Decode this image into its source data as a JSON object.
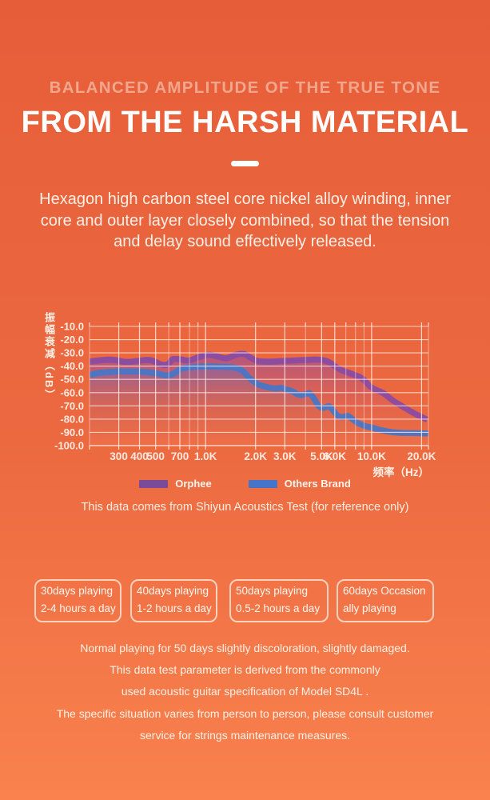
{
  "header": {
    "subtitle": "BALANCED AMPLITUDE OF THE TRUE TONE",
    "title": "FROM THE HARSH MATERIAL",
    "description": "Hexagon high carbon steel core nickel alloy winding, inner core and outer layer closely combined, so that the tension and delay sound effectively released."
  },
  "colors": {
    "background_top": "#E65E39",
    "background_bottom": "#F9824E",
    "title": "#FFFFFF",
    "subtitle": "#F2A68D",
    "grid": "rgba(255,240,234,0.72)",
    "axis_text": "#FFE9DE",
    "orphee_purple": "#7B4A99",
    "others_blue": "#4674C8"
  },
  "chart_data": {
    "type": "area",
    "source_note": "This data comes from Shiyun Acoustics Test (for reference only)",
    "x_axis": {
      "title": "频率（Hz）",
      "scale": "log",
      "min": 200,
      "max": 22000,
      "gridlines": [
        200,
        300,
        400,
        500,
        600,
        700,
        800,
        900,
        1000,
        2000,
        3000,
        4000,
        5000,
        6000,
        7000,
        8000,
        9000,
        10000,
        20000,
        22000
      ],
      "tick_labels": [
        {
          "f": 300,
          "label": "300"
        },
        {
          "f": 400,
          "label": "400"
        },
        {
          "f": 500,
          "label": "500"
        },
        {
          "f": 700,
          "label": "700"
        },
        {
          "f": 1000,
          "label": "1.0K"
        },
        {
          "f": 2000,
          "label": "2.0K"
        },
        {
          "f": 3000,
          "label": "3.0K"
        },
        {
          "f": 5000,
          "label": "5.0K"
        },
        {
          "f": 6000,
          "label": "6.0K"
        },
        {
          "f": 10000,
          "label": "10.0K"
        },
        {
          "f": 20000,
          "label": "20.0K"
        }
      ]
    },
    "y_axis": {
      "title": "振幅衰减（dB）",
      "min": -100,
      "max": -10,
      "step": 10,
      "tick_labels": [
        "-10.0",
        "-20.0",
        "-30.0",
        "-40.0",
        "-50.0",
        "-60.0",
        "-70.0",
        "-80.0",
        "-90.0",
        "-100.0"
      ]
    },
    "legend": [
      {
        "name": "Orphee",
        "color": "#7B4A99"
      },
      {
        "name": "Others Brand",
        "color": "#4674C8"
      }
    ],
    "series": [
      {
        "name": "Orphee",
        "line_color": "#8A4BA3",
        "gradient": [
          [
            0,
            "#9150A9",
            0.95
          ],
          [
            0.35,
            "#A6518F",
            0.6
          ],
          [
            0.7,
            "#D85F5D",
            0.34
          ],
          [
            1,
            "#F07A52",
            0.2
          ]
        ],
        "points": [
          [
            200,
            -34.3
          ],
          [
            240,
            -33.2
          ],
          [
            280,
            -33
          ],
          [
            330,
            -34.5
          ],
          [
            380,
            -34
          ],
          [
            430,
            -33.2
          ],
          [
            480,
            -33.5
          ],
          [
            540,
            -36.3
          ],
          [
            580,
            -36.6
          ],
          [
            620,
            -32.8
          ],
          [
            700,
            -32.5
          ],
          [
            790,
            -33.5
          ],
          [
            900,
            -31
          ],
          [
            1050,
            -29.2
          ],
          [
            1200,
            -30.6
          ],
          [
            1330,
            -31.8
          ],
          [
            1480,
            -29.6
          ],
          [
            1620,
            -28.6
          ],
          [
            1750,
            -28.9
          ],
          [
            1900,
            -31.5
          ],
          [
            2050,
            -33.8
          ],
          [
            2300,
            -34.3
          ],
          [
            2600,
            -34.2
          ],
          [
            3000,
            -33.8
          ],
          [
            3500,
            -33.4
          ],
          [
            4200,
            -33
          ],
          [
            4700,
            -32.8
          ],
          [
            5200,
            -33.4
          ],
          [
            5700,
            -35.2
          ],
          [
            6200,
            -38.5
          ],
          [
            6800,
            -41.3
          ],
          [
            7500,
            -43.2
          ],
          [
            8200,
            -45
          ],
          [
            8800,
            -46.8
          ],
          [
            9400,
            -49.5
          ],
          [
            10000,
            -53.3
          ],
          [
            10700,
            -55.6
          ],
          [
            11500,
            -57.3
          ],
          [
            12300,
            -59.3
          ],
          [
            13500,
            -63.3
          ],
          [
            15000,
            -67
          ],
          [
            16500,
            -70.2
          ],
          [
            18500,
            -73.8
          ],
          [
            20500,
            -76.5
          ],
          [
            22000,
            -78.4
          ]
        ]
      },
      {
        "name": "Others Brand",
        "line_color": "#4576C8",
        "gradient": [
          [
            0,
            "#4C7ECB",
            0.95
          ],
          [
            0.38,
            "#7C6AAD",
            0.5
          ],
          [
            0.72,
            "#C9645C",
            0.3
          ],
          [
            1,
            "#EF7A52",
            0.18
          ]
        ],
        "points": [
          [
            200,
            -44.5
          ],
          [
            230,
            -42.8
          ],
          [
            300,
            -41.8
          ],
          [
            400,
            -41.9
          ],
          [
            500,
            -43
          ],
          [
            600,
            -44.6
          ],
          [
            700,
            -40
          ],
          [
            820,
            -38.5
          ],
          [
            1000,
            -38
          ],
          [
            1250,
            -38.2
          ],
          [
            1500,
            -38.8
          ],
          [
            1700,
            -41.5
          ],
          [
            1900,
            -47.5
          ],
          [
            2100,
            -51.5
          ],
          [
            2350,
            -53.5
          ],
          [
            2600,
            -54.5
          ],
          [
            2900,
            -54.2
          ],
          [
            3100,
            -55.5
          ],
          [
            3400,
            -57
          ],
          [
            3700,
            -59.5
          ],
          [
            4000,
            -58.8
          ],
          [
            4300,
            -58.3
          ],
          [
            4650,
            -63
          ],
          [
            5000,
            -69
          ],
          [
            5600,
            -68
          ],
          [
            6100,
            -72.5
          ],
          [
            6500,
            -76
          ],
          [
            7300,
            -75.5
          ],
          [
            8000,
            -79
          ],
          [
            8600,
            -81.5
          ],
          [
            9300,
            -83.2
          ],
          [
            10000,
            -84
          ],
          [
            11000,
            -85.5
          ],
          [
            12500,
            -87
          ],
          [
            14500,
            -88
          ],
          [
            18000,
            -88.3
          ],
          [
            22000,
            -88.6
          ]
        ]
      }
    ]
  },
  "duration_boxes": [
    {
      "line1": "30days playing",
      "line2": "2-4 hours a day"
    },
    {
      "line1": "40days playing",
      "line2": "1-2 hours a day"
    },
    {
      "line1": "50days playing",
      "line2": "0.5-2 hours a day"
    },
    {
      "line1": "60days  Occasion",
      "line2": "ally playing"
    }
  ],
  "footer": {
    "lines": [
      "Normal playing for 50 days slightly discoloration, slightly damaged.",
      "This data test parameter is derived from the commonly",
      "used acoustic guitar specification of Model SD4L .",
      "The specific situation varies from person to person, please consult customer",
      "service for strings maintenance measures."
    ]
  }
}
